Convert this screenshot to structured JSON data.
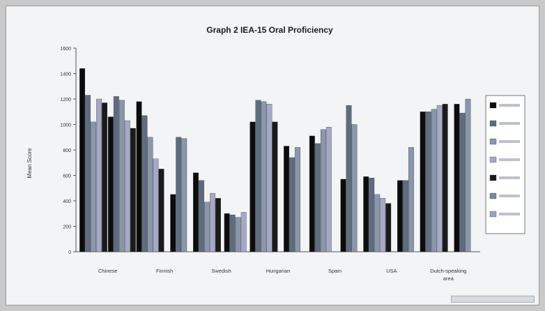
{
  "chart_data": {
    "type": "bar",
    "title": "Graph 2  IEA-15 Oral Proficiency",
    "xlabel": "",
    "ylabel": "Mean Score",
    "ylim": [
      0,
      1600
    ],
    "yticks": [
      0,
      200,
      400,
      600,
      800,
      1000,
      1200,
      1400,
      1600
    ],
    "grid": false,
    "legend_position": "right",
    "categories": [
      "Chinese",
      "Finnish",
      "Swedish",
      "Hungarian",
      "Spain",
      "USA",
      "Dutch-speaking area"
    ],
    "category_display": [
      [
        "Chinese"
      ],
      [
        "Finnish"
      ],
      [
        "Swedish"
      ],
      [
        "Hungarian"
      ],
      [
        "Spain"
      ],
      [
        "USA"
      ],
      [
        "Dutch-speaking",
        "area"
      ]
    ],
    "groups": [
      {
        "values": [
          1440,
          1230,
          1020,
          1200,
          1170
        ]
      },
      {
        "values": [
          1060,
          1220,
          1190,
          1030,
          970
        ]
      },
      {
        "values": [
          1180,
          1070,
          900,
          730,
          650
        ]
      },
      {
        "values": [
          450,
          900,
          890
        ]
      },
      {
        "values": [
          620,
          560,
          390,
          460,
          420
        ]
      },
      {
        "values": [
          300,
          290,
          270,
          310
        ]
      },
      {
        "values": [
          1020,
          1190,
          1180,
          1160,
          1020
        ]
      },
      {
        "values": [
          830,
          740,
          820
        ]
      },
      {
        "values": [
          910,
          850,
          960,
          980
        ]
      },
      {
        "values": [
          570,
          1150,
          1000
        ]
      },
      {
        "values": [
          590,
          580,
          450,
          420,
          380
        ]
      },
      {
        "values": [
          560,
          560,
          820
        ]
      },
      {
        "values": [
          1100,
          1100,
          1120,
          1150,
          1160
        ]
      },
      {
        "values": [
          1160,
          1090,
          1200
        ]
      }
    ]
  },
  "colors": {
    "bar_palette": [
      "#0c0c0c",
      "#5e6c80",
      "#8a96aa",
      "#a4a9c6",
      "#1a1a1a",
      "#7d8898",
      "#9aa3bd"
    ],
    "frame_bg": "#f3f4f6"
  }
}
